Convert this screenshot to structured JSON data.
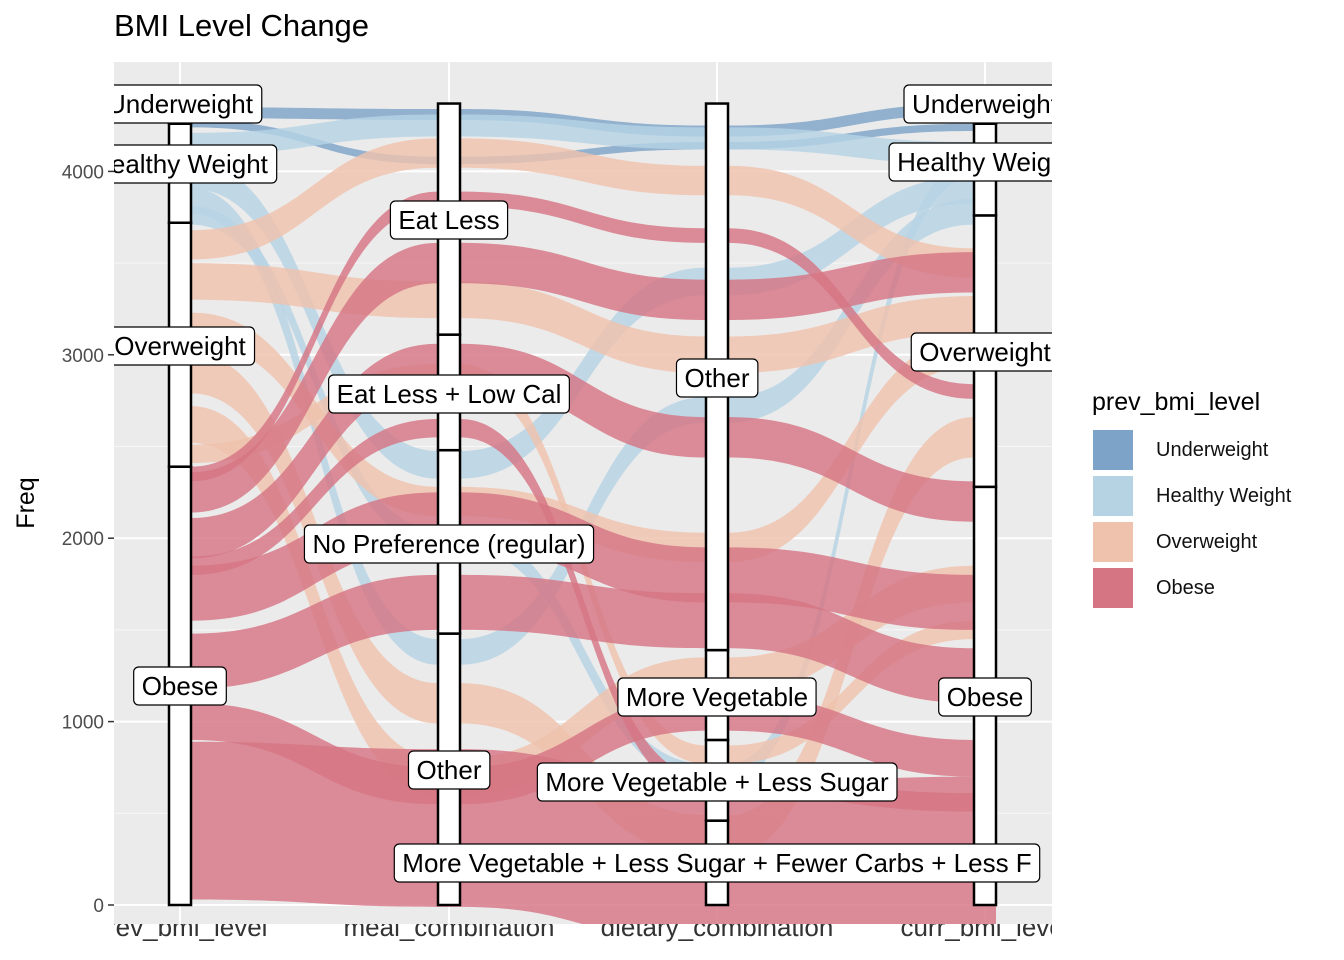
{
  "title": "BMI Level Change",
  "chart_data": {
    "type": "alluvial",
    "title": "BMI Level Change",
    "xlabel": "",
    "ylabel": "Freq",
    "ylim": [
      0,
      4450
    ],
    "yticks": [
      0,
      1000,
      2000,
      3000,
      4000
    ],
    "axes": [
      "prev_bmi_level",
      "meal_combination",
      "dietary_combination",
      "curr_bmi_level"
    ],
    "legend_title": "prev_bmi_level",
    "legend": [
      {
        "name": "Underweight",
        "color": "#7da3c8"
      },
      {
        "name": "Healthy Weight",
        "color": "#b6d3e4"
      },
      {
        "name": "Overweight",
        "color": "#efc2ad"
      },
      {
        "name": "Obese",
        "color": "#d57584"
      }
    ],
    "strata": [
      [
        {
          "label": "Obese",
          "value": 2390
        },
        {
          "label": "Overweight",
          "value": 1330
        },
        {
          "label": "Healthy Weight",
          "value": 540
        },
        {
          "label": "Underweight",
          "value": 110
        }
      ],
      [
        {
          "label": "Other",
          "value": 1480
        },
        {
          "label": "No Preference (regular)",
          "value": 1000
        },
        {
          "label": "Eat Less + Low Cal",
          "value": 630
        },
        {
          "label": "Eat Less",
          "value": 1260
        }
      ],
      [
        {
          "label": "More Vegetable + Less Sugar + Fewer Carbs + Less F",
          "value": 460
        },
        {
          "label": "More Vegetable + Less Sugar",
          "value": 440
        },
        {
          "label": "More Vegetable",
          "value": 490
        },
        {
          "label": "Other",
          "value": 2980
        }
      ],
      [
        {
          "label": "Obese",
          "value": 2280
        },
        {
          "label": "Overweight",
          "value": 1480
        },
        {
          "label": "Healthy Weight",
          "value": 500
        },
        {
          "label": "Underweight",
          "value": 110
        }
      ]
    ],
    "flows": [
      {
        "group": "Underweight",
        "y": [
          4320,
          4310,
          4220,
          4340
        ],
        "width": 60
      },
      {
        "group": "Underweight",
        "y": [
          4260,
          4060,
          4140,
          4240
        ],
        "width": 40
      },
      {
        "group": "Healthy Weight",
        "y": [
          4150,
          4250,
          4180,
          4100
        ],
        "width": 120
      },
      {
        "group": "Healthy Weight",
        "y": [
          3980,
          2400,
          3400,
          3900
        ],
        "width": 150
      },
      {
        "group": "Healthy Weight",
        "y": [
          3840,
          1380,
          2700,
          3780
        ],
        "width": 140
      },
      {
        "group": "Healthy Weight",
        "y": [
          3760,
          2000,
          720,
          4020
        ],
        "width": 100
      },
      {
        "group": "Overweight",
        "y": [
          3600,
          4100,
          3950,
          3500
        ],
        "width": 160
      },
      {
        "group": "Overweight",
        "y": [
          3400,
          3300,
          3000,
          3220
        ],
        "width": 200
      },
      {
        "group": "Overweight",
        "y": [
          3150,
          2200,
          1950,
          3020
        ],
        "width": 160
      },
      {
        "group": "Overweight",
        "y": [
          2900,
          1100,
          380,
          2550
        ],
        "width": 220
      },
      {
        "group": "Overweight",
        "y": [
          2620,
          700,
          1250,
          1750
        ],
        "width": 200
      },
      {
        "group": "Overweight",
        "y": [
          2460,
          2900,
          820,
          1500
        ],
        "width": 100
      },
      {
        "group": "Obese",
        "y": [
          2250,
          3500,
          3300,
          3450
        ],
        "width": 220
      },
      {
        "group": "Obese",
        "y": [
          2000,
          2950,
          2550,
          2200
        ],
        "width": 220
      },
      {
        "group": "Obese",
        "y": [
          1700,
          2100,
          1800,
          1650
        ],
        "width": 300
      },
      {
        "group": "Obese",
        "y": [
          1330,
          1650,
          1550,
          1250
        ],
        "width": 300
      },
      {
        "group": "Obese",
        "y": [
          1000,
          650,
          1050,
          800
        ],
        "width": 200
      },
      {
        "group": "Obese",
        "y": [
          460,
          420,
          230,
          270
        ],
        "width": 860
      },
      {
        "group": "Obese",
        "y": [
          2350,
          3850,
          3650,
          2800
        ],
        "width": 80
      },
      {
        "group": "Obese",
        "y": [
          1850,
          2600,
          650,
          560
        ],
        "width": 100
      }
    ]
  }
}
